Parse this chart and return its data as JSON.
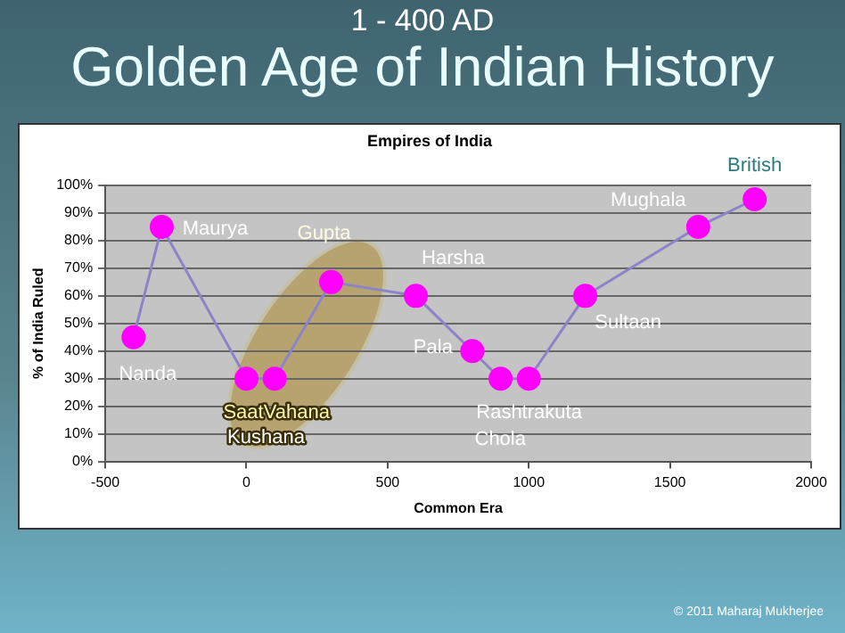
{
  "chart_data": {
    "type": "line",
    "title": "Golden Age of Indian History",
    "subtitle": "1 -  400 AD",
    "xlabel": "Common Era",
    "ylabel": "% of India Ruled",
    "x": [
      -400,
      -300,
      0,
      100,
      300,
      600,
      800,
      900,
      1000,
      1200,
      1600,
      1800
    ],
    "series": [
      {
        "color": "#ff00ff",
        "values": [
          45,
          85,
          30,
          30,
          65,
          60,
          40,
          30,
          30,
          60,
          85,
          95
        ]
      }
    ],
    "xlim": [
      -500,
      2000
    ],
    "xticks": [
      -500,
      0,
      500,
      1000,
      1500,
      2000
    ],
    "ylim": [
      0,
      100
    ],
    "yticks": [
      {
        "value": 0,
        "label": "0%"
      },
      {
        "value": 10,
        "label": "10%"
      },
      {
        "value": 20,
        "label": "20%"
      },
      {
        "value": 30,
        "label": "30%"
      },
      {
        "value": 40,
        "label": "40%"
      },
      {
        "value": 50,
        "label": "50%"
      },
      {
        "value": 60,
        "label": "60%"
      },
      {
        "value": 70,
        "label": "70%"
      },
      {
        "value": 80,
        "label": "80%"
      },
      {
        "value": 90,
        "label": "90%"
      },
      {
        "value": 100,
        "label": "100%"
      }
    ],
    "grid": "y",
    "legend": false,
    "marker": "circle",
    "line_style": "solid",
    "annotations": [
      "Empires of India",
      "© 2011 Maharaj Mukherjee",
      {
        "text": "Nanda",
        "x": -400,
        "y": 45
      },
      {
        "text": "Maurya",
        "x": -300,
        "y": 85
      },
      {
        "text": "Gupta",
        "x": 300,
        "y": 65
      },
      {
        "text": "SaatVahana",
        "x": 100,
        "y": 30
      },
      {
        "text": "Kushana",
        "x": 0,
        "y": 30
      },
      {
        "text": "Harsha",
        "x": 600,
        "y": 60
      },
      {
        "text": "Pala",
        "x": 800,
        "y": 40
      },
      {
        "text": "Rashtrakuta",
        "x": 900,
        "y": 30
      },
      {
        "text": "Chola",
        "x": 1000,
        "y": 30
      },
      {
        "text": "Sultaan",
        "x": 1200,
        "y": 60
      },
      {
        "text": "Mughala",
        "x": 1600,
        "y": 85
      },
      {
        "text": "British",
        "x": 1800,
        "y": 95
      }
    ]
  }
}
